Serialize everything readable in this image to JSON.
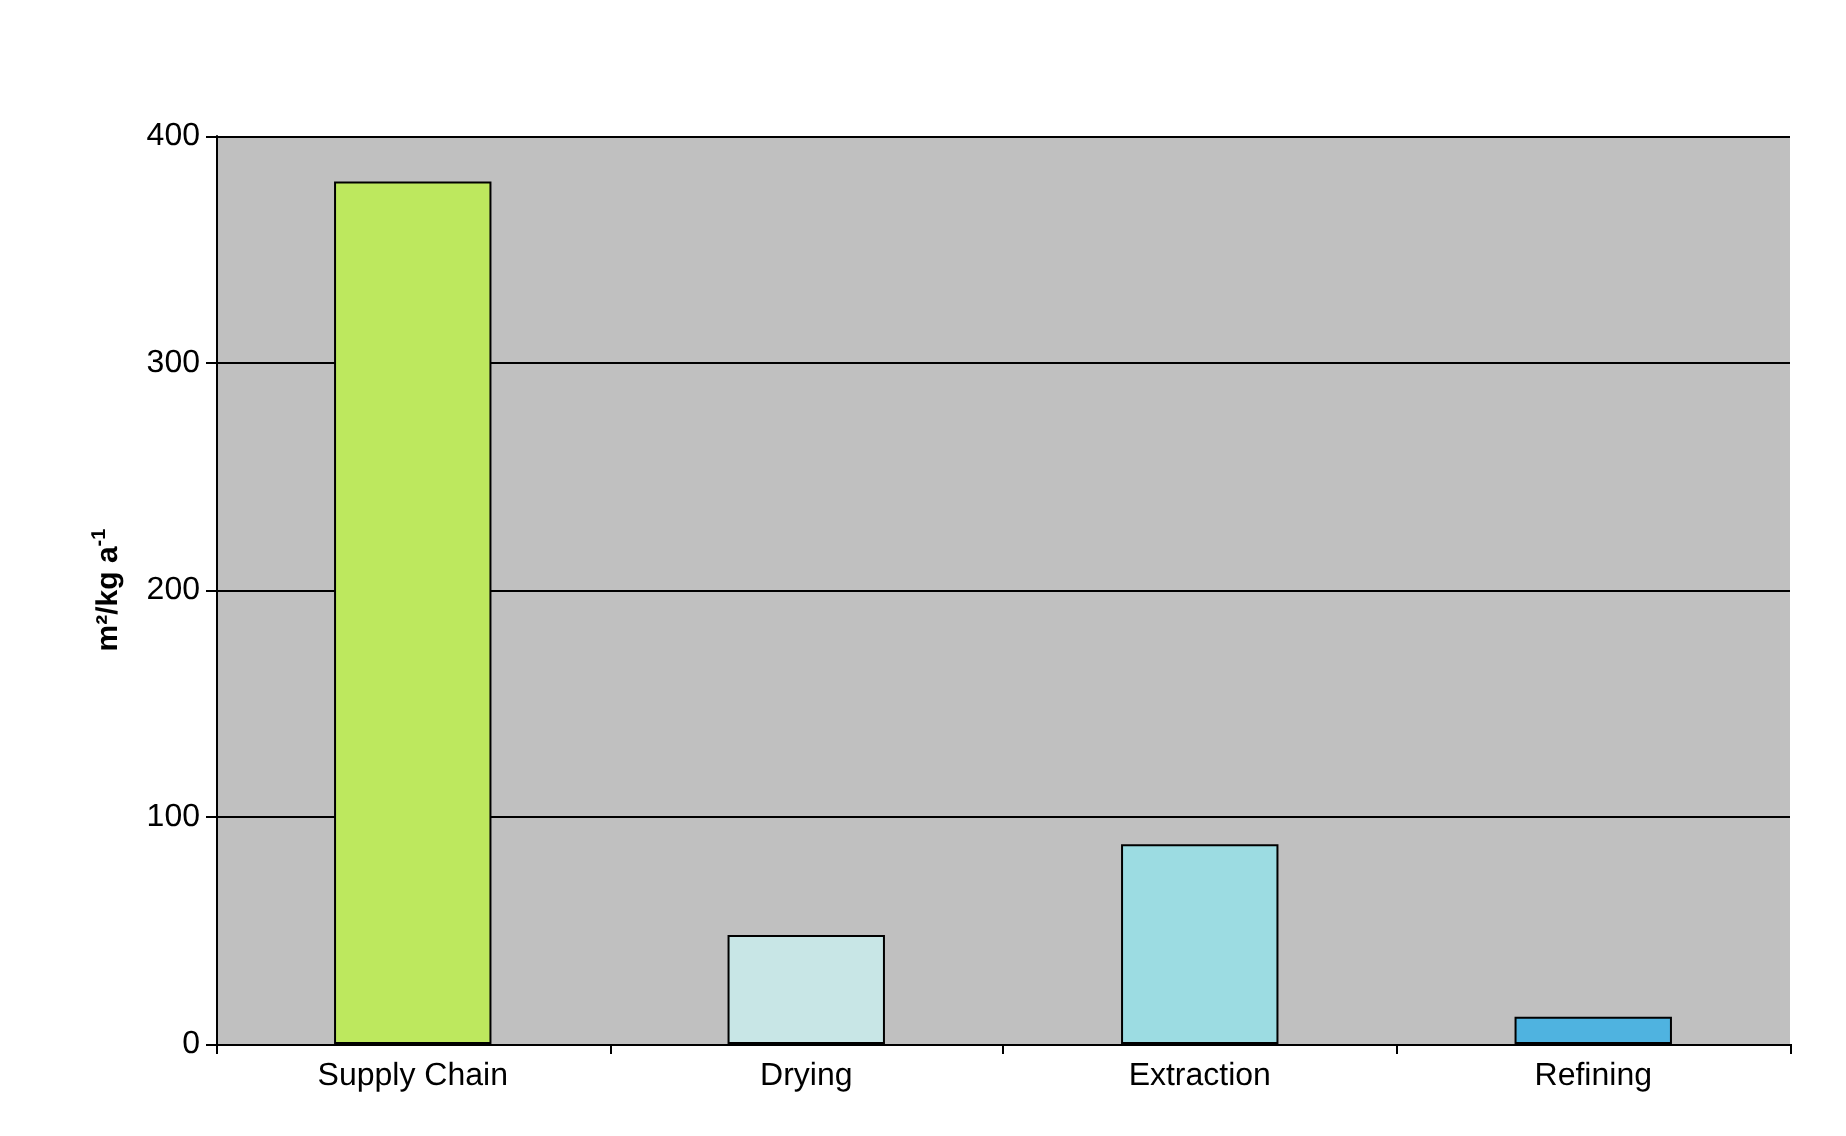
{
  "chart_data": {
    "type": "bar",
    "ylabel": "m²/kg a$^{-1}$",
    "categories": [
      "Supply Chain",
      "Drying",
      "Extraction",
      "Refining"
    ],
    "values": [
      380,
      48,
      88,
      12
    ],
    "colors": [
      "#bde85e",
      "#c8e6e6",
      "#9cdce2",
      "#4fb3e0"
    ],
    "ylim": [
      0,
      400
    ],
    "yticks": [
      0,
      100,
      200,
      300,
      400
    ],
    "grid": "y"
  }
}
